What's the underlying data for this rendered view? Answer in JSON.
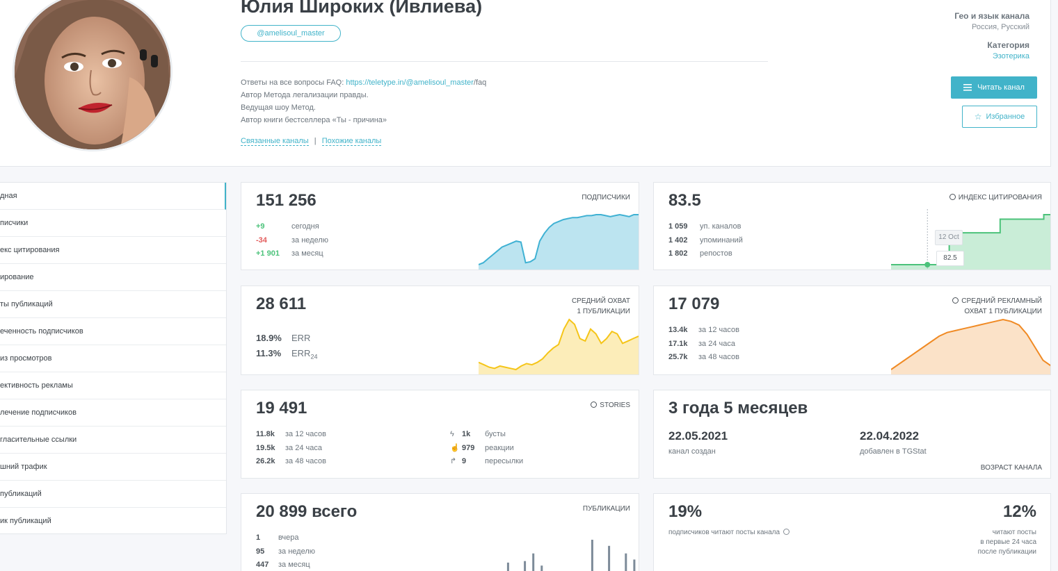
{
  "header": {
    "title": "Юлия Широких (Ивлиева)",
    "username": "@amelisoul_master",
    "desc_faq_prefix": "Ответы на все вопросы FAQ: ",
    "desc_faq_link": "https://teletype.in/@amelisoul_master",
    "desc_faq_suffix": "/faq",
    "desc_line2": "Автор Метода легализации правды.",
    "desc_line3": "Ведущая шоу Метод.",
    "desc_line4": "Автор книги бестселлера «Ты - причина»",
    "link_related": "Связанные каналы",
    "link_sep": "|",
    "link_similar": "Похожие каналы",
    "geo_label": "Гео и язык канала",
    "geo_value": "Россия, Русский",
    "category_label": "Категория",
    "category_value": "Эзотерика",
    "read_button": "Читать канал",
    "fav_button": "Избранное"
  },
  "sidebar": {
    "items": [
      {
        "label": "дная"
      },
      {
        "label": "писчики"
      },
      {
        "label": "екс цитирования"
      },
      {
        "label": "ирование"
      },
      {
        "label": "ты публикаций"
      },
      {
        "label": "еченность подписчиков"
      },
      {
        "label": "из просмотров"
      },
      {
        "label": "ективность рекламы"
      },
      {
        "label": "лечение подписчиков"
      },
      {
        "label": "гласительные ссылки"
      },
      {
        "label": "шний трафик"
      },
      {
        "label": "публикаций"
      },
      {
        "label": "ик публикаций"
      }
    ]
  },
  "subscribers": {
    "value": "151 256",
    "label": "ПОДПИСЧИКИ",
    "rows": [
      {
        "n": "+9",
        "t": "сегодня"
      },
      {
        "n": "-34",
        "t": "за неделю"
      },
      {
        "n": "+1 901",
        "t": "за месяц"
      }
    ]
  },
  "citation": {
    "value": "83.5",
    "label": "ИНДЕКС ЦИТИРОВАНИЯ",
    "rows": [
      {
        "n": "1 059",
        "t": "уп. каналов"
      },
      {
        "n": "1 402",
        "t": "упоминаний"
      },
      {
        "n": "1 802",
        "t": "репостов"
      }
    ],
    "tooltip_date": "12 Oct",
    "tooltip_value": "82.5"
  },
  "reach": {
    "value": "28 611",
    "label_1": "СРЕДНИЙ ОХВАТ",
    "label_2": "1 ПУБЛИКАЦИИ",
    "err_value": "18.9%",
    "err_label": "ERR",
    "err24_value": "11.3%",
    "err24_label": "ERR",
    "err24_sub": "24"
  },
  "ad_reach": {
    "value": "17 079",
    "label_1": "СРЕДНИЙ РЕКЛАМНЫЙ",
    "label_2": "ОХВАТ 1 ПУБЛИКАЦИИ",
    "rows": [
      {
        "n": "13.4k",
        "t": "за 12 часов"
      },
      {
        "n": "17.1k",
        "t": "за 24 часа"
      },
      {
        "n": "25.7k",
        "t": "за 48 часов"
      }
    ]
  },
  "stories": {
    "value": "19 491",
    "label": "STORIES",
    "rows": [
      {
        "n": "11.8k",
        "t": "за 12 часов"
      },
      {
        "n": "19.5k",
        "t": "за 24 часа"
      },
      {
        "n": "26.2k",
        "t": "за 48 часов"
      }
    ],
    "right_rows": [
      {
        "n": "1k",
        "t": "бусты"
      },
      {
        "n": "979",
        "t": "реакции"
      },
      {
        "n": "9",
        "t": "пересылки"
      }
    ]
  },
  "age": {
    "value": "3 года 5 месяцев",
    "created_date": "22.05.2021",
    "created_label": "канал создан",
    "added_date": "22.04.2022",
    "added_label": "добавлен в TGStat",
    "label": "ВОЗРАСТ КАНАЛА"
  },
  "posts": {
    "value": "20 899 всего",
    "label": "ПУБЛИКАЦИИ",
    "rows": [
      {
        "n": "1",
        "t": "вчера"
      },
      {
        "n": "95",
        "t": "за неделю"
      },
      {
        "n": "447",
        "t": "за месяц"
      }
    ]
  },
  "engagement": {
    "left_value": "19%",
    "left_label": "подписчиков читают посты канала",
    "right_value": "12%",
    "right_label_1": "читают посты",
    "right_label_2": "в первые 24 часа",
    "right_label_3": "после публикации"
  },
  "colors": {
    "accent": "#41b3c9",
    "subs_line": "#3fb1d3",
    "reach_line": "#f5c518",
    "ad_line": "#f08a24",
    "cit_line": "#4bc27a",
    "bars": "#7d8b99"
  },
  "chart_data": [
    {
      "type": "area",
      "title": "ПОДПИСЧИКИ",
      "series": [
        {
          "values": [
            2,
            4,
            8,
            12,
            16,
            20,
            22,
            24,
            26,
            25,
            4,
            5,
            8,
            26,
            34,
            40,
            44,
            46,
            48,
            49,
            50,
            50,
            51,
            52,
            52,
            53,
            53,
            52,
            51,
            52,
            53,
            52,
            51,
            53,
            53
          ]
        }
      ]
    },
    {
      "type": "area",
      "title": "ИНДЕКС ЦИТИРОВАНИЯ",
      "series": [
        {
          "values": [
            82.5,
            82.5,
            82.5,
            82.5,
            82.5,
            82.5,
            82.5,
            82.5,
            83.2,
            83.2,
            83.2,
            83.2,
            83.2,
            83.2,
            83.2,
            83.5,
            83.5,
            83.5,
            83.5,
            83.5,
            83.5,
            83.6,
            83.6
          ]
        }
      ]
    },
    {
      "type": "area",
      "title": "СРЕДНИЙ ОХВАТ 1 ПУБЛИКАЦИИ",
      "series": [
        {
          "values": [
            10,
            8,
            6,
            5,
            7,
            6,
            5,
            4,
            7,
            9,
            8,
            10,
            13,
            18,
            22,
            25,
            38,
            46,
            42,
            30,
            28,
            38,
            34,
            26,
            30,
            36,
            34,
            26,
            28,
            30,
            32
          ]
        }
      ]
    },
    {
      "type": "area",
      "title": "СРЕДНИЙ РЕКЛАМНЫЙ ОХВАТ 1 ПУБЛИКАЦИИ",
      "series": [
        {
          "values": [
            8,
            14,
            20,
            26,
            32,
            38,
            44,
            48,
            50,
            52,
            54,
            56,
            58,
            60,
            62,
            60,
            56,
            46,
            32,
            18,
            12
          ]
        }
      ]
    },
    {
      "type": "bar",
      "title": "ПУБЛИКАЦИИ",
      "series": [
        {
          "values": [
            0,
            0,
            0,
            6,
            0,
            7,
            12,
            4,
            0,
            0,
            0,
            0,
            0,
            21,
            0,
            17,
            0,
            12,
            8
          ]
        }
      ]
    }
  ]
}
